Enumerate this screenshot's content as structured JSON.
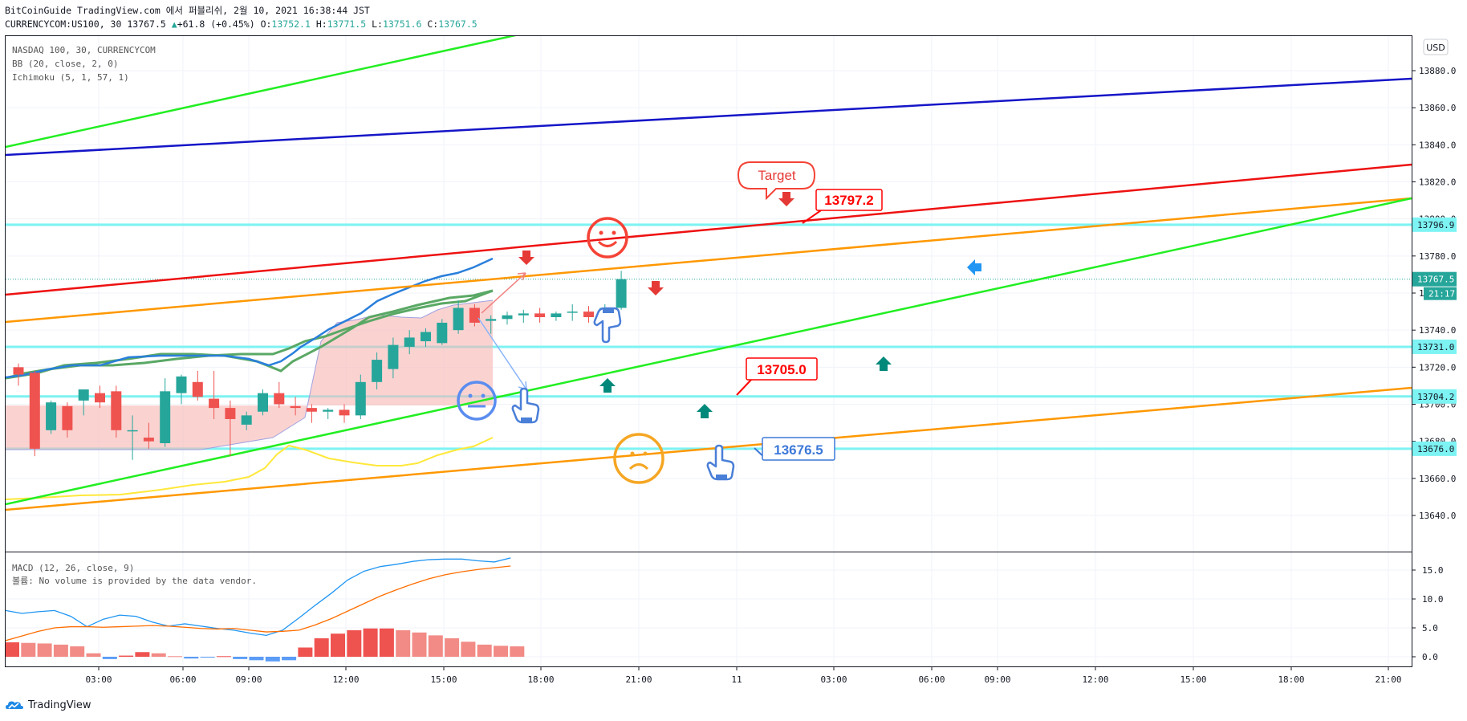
{
  "header": {
    "line1": "BitCoinGuide TradingView.com 에서 퍼블리쉬, 2월 10, 2021 16:38:44 JST",
    "symbol": "CURRENCYCOM:US100, 30",
    "last": "13767.5",
    "change": "+61.8 (+0.45%)",
    "o_label": "O:",
    "o": "13752.1",
    "h_label": "H:",
    "h": "13771.5",
    "l_label": "L:",
    "l": "13751.6",
    "c_label": "C:",
    "c": "13767.5"
  },
  "legend": {
    "symbol": "NASDAQ 100, 30, CURRENCYCOM",
    "bb": "BB (20, close, 2, 0)",
    "ichimoku": "Ichimoku (5, 1, 57, 1)",
    "macd": "MACD (12, 26, close, 9)",
    "volume_note": "볼륨: No volume is provided by the data vendor."
  },
  "currency_button": "USD",
  "countdown": "21:17",
  "footer": {
    "brand": "TradingView"
  },
  "chart_data": {
    "type": "candlestick",
    "price_axis": {
      "ylim": [
        13624,
        13898
      ],
      "ticks": [
        13640,
        13660,
        13680,
        13700,
        13720,
        13740,
        13760,
        13780,
        13800,
        13820,
        13840,
        13860,
        13880
      ]
    },
    "price_tick_labels": [
      "13640.0",
      "13660.0",
      "13680.0",
      "13700.0",
      "13720.0",
      "13740.0",
      "13760.0",
      "13780.0",
      "13800.0",
      "13820.0",
      "13840.0",
      "13860.0",
      "13880.0"
    ],
    "time_axis": {
      "tick_labels": [
        "03:00",
        "06:00",
        "09:00",
        "12:00",
        "15:00",
        "18:00",
        "21:00",
        "11",
        "03:00",
        "06:00",
        "09:00",
        "12:00",
        "15:00",
        "18:00",
        "21:00"
      ]
    },
    "candles": [
      [
        13720,
        13722,
        13710,
        13716
      ],
      [
        13717,
        13718,
        13672,
        13676
      ],
      [
        13686,
        13702,
        13684,
        13701
      ],
      [
        13699,
        13701,
        13682,
        13686
      ],
      [
        13702,
        13708,
        13694,
        13708
      ],
      [
        13706,
        13710,
        13698,
        13701
      ],
      [
        13707,
        13710,
        13682,
        13686
      ],
      [
        13686,
        13694,
        13670,
        13686
      ],
      [
        13682,
        13690,
        13676,
        13680
      ],
      [
        13679,
        13714,
        13677,
        13707
      ],
      [
        13706,
        13716,
        13700,
        13715
      ],
      [
        13712,
        13718,
        13702,
        13704
      ],
      [
        13703,
        13718,
        13692,
        13698
      ],
      [
        13698,
        13702,
        13672,
        13692
      ],
      [
        13689,
        13696,
        13686,
        13694
      ],
      [
        13696,
        13708,
        13694,
        13706
      ],
      [
        13706,
        13712,
        13698,
        13700
      ],
      [
        13699,
        13704,
        13694,
        13698
      ],
      [
        13698,
        13700,
        13690,
        13696
      ],
      [
        13696,
        13698,
        13692,
        13697
      ],
      [
        13697,
        13700,
        13690,
        13694
      ],
      [
        13694,
        13716,
        13692,
        13712
      ],
      [
        13712,
        13728,
        13708,
        13724
      ],
      [
        13719,
        13736,
        13714,
        13732
      ],
      [
        13731,
        13740,
        13727,
        13736
      ],
      [
        13734,
        13741,
        13731,
        13739
      ],
      [
        13733,
        13746,
        13732,
        13744
      ],
      [
        13740,
        13756,
        13738,
        13752
      ],
      [
        13752,
        13754,
        13742,
        13744
      ],
      [
        13745,
        13748,
        13738,
        13746
      ],
      [
        13746,
        13750,
        13743,
        13748
      ],
      [
        13748,
        13751,
        13744,
        13749
      ],
      [
        13749,
        13752,
        13744,
        13747
      ],
      [
        13747,
        13750,
        13745,
        13749
      ],
      [
        13750,
        13754,
        13745,
        13750
      ],
      [
        13750,
        13753,
        13744,
        13747
      ],
      [
        13747,
        13754,
        13744,
        13752
      ],
      [
        13752,
        13772,
        13751,
        13767.5
      ]
    ],
    "horizontal_levels": [
      {
        "value": 13796.9,
        "label": "13796.9"
      },
      {
        "value": 13731.0,
        "label": "13731.0"
      },
      {
        "value": 13704.2,
        "label": "13704.2"
      },
      {
        "value": 13676.0,
        "label": "13676.0"
      }
    ],
    "last_price": {
      "value": 13767.5,
      "label": "13767.5"
    },
    "callouts": [
      {
        "text": "13797.2",
        "color": "#ff0000"
      },
      {
        "text": "13705.0",
        "color": "#ff0000"
      },
      {
        "text": "13676.5",
        "color": "#3c78d8"
      }
    ],
    "target_label": "Target",
    "macd": {
      "ylim": [
        -4,
        18
      ],
      "ticks": [
        0,
        5,
        10,
        15
      ],
      "tick_labels": [
        "0.0",
        "5.0",
        "10.0",
        "15.0"
      ],
      "histogram": [
        2.5,
        2.4,
        2.3,
        2.1,
        1.8,
        0.6,
        -0.4,
        0.2,
        0.8,
        0.6,
        0.1,
        -0.3,
        -0.1,
        0.1,
        -0.4,
        -0.6,
        -0.8,
        -0.6,
        1.6,
        3.2,
        4.0,
        4.6,
        4.9,
        4.9,
        4.6,
        4.2,
        3.7,
        3.2,
        2.6,
        2.1,
        1.9,
        1.8
      ],
      "colors": {
        "pos_up": "#ef5350",
        "pos_down": "#f28b86",
        "neg": "#5b9cf6"
      }
    },
    "colors": {
      "up": "#26a69a",
      "down": "#ef5350",
      "level": "#7df3f3",
      "green": "#22ee22",
      "red": "#ee1111",
      "orange": "#ff9800",
      "blue": "#1515c8",
      "bb_upper": "#2a7fdb",
      "bb_mid": "#5aa865",
      "bb_lower": "#ffe83a"
    }
  }
}
